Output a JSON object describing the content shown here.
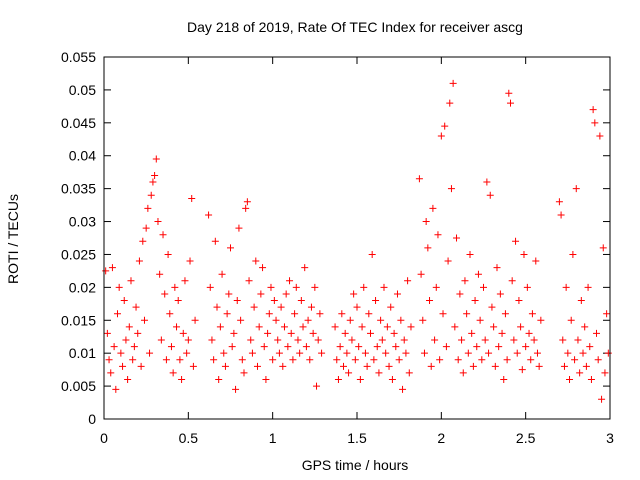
{
  "chart_data": {
    "type": "scatter",
    "title": "Day 218 of 2019, Rate Of TEC Index for receiver ascg",
    "xlabel": "GPS time / hours",
    "ylabel": "ROTI / TECUs",
    "xlim": [
      0,
      3
    ],
    "ylim": [
      0,
      0.055
    ],
    "x_ticks": [
      0,
      0.5,
      1,
      1.5,
      2,
      2.5,
      3
    ],
    "x_tick_labels": [
      "0",
      "0.5",
      "1",
      "1.5",
      "2",
      "2.5",
      "3"
    ],
    "y_ticks": [
      0,
      0.005,
      0.01,
      0.015,
      0.02,
      0.025,
      0.03,
      0.035,
      0.04,
      0.045,
      0.05,
      0.055
    ],
    "y_tick_labels": [
      "0",
      "0.005",
      "0.01",
      "0.015",
      "0.02",
      "0.025",
      "0.03",
      "0.035",
      "0.04",
      "0.045",
      "0.05",
      "0.055"
    ],
    "marker": "+",
    "color": "#ff0000",
    "series": [
      {
        "name": "ROTI",
        "points": [
          [
            0.01,
            0.0225
          ],
          [
            0.02,
            0.013
          ],
          [
            0.03,
            0.009
          ],
          [
            0.04,
            0.007
          ],
          [
            0.05,
            0.023
          ],
          [
            0.06,
            0.011
          ],
          [
            0.07,
            0.0045
          ],
          [
            0.08,
            0.016
          ],
          [
            0.09,
            0.02
          ],
          [
            0.1,
            0.01
          ],
          [
            0.11,
            0.008
          ],
          [
            0.12,
            0.018
          ],
          [
            0.13,
            0.012
          ],
          [
            0.14,
            0.006
          ],
          [
            0.15,
            0.014
          ],
          [
            0.16,
            0.021
          ],
          [
            0.17,
            0.009
          ],
          [
            0.18,
            0.011
          ],
          [
            0.19,
            0.017
          ],
          [
            0.2,
            0.013
          ],
          [
            0.21,
            0.024
          ],
          [
            0.22,
            0.008
          ],
          [
            0.23,
            0.027
          ],
          [
            0.24,
            0.015
          ],
          [
            0.25,
            0.029
          ],
          [
            0.26,
            0.032
          ],
          [
            0.27,
            0.01
          ],
          [
            0.28,
            0.034
          ],
          [
            0.29,
            0.036
          ],
          [
            0.3,
            0.037
          ],
          [
            0.31,
            0.0395
          ],
          [
            0.32,
            0.03
          ],
          [
            0.33,
            0.022
          ],
          [
            0.34,
            0.012
          ],
          [
            0.35,
            0.028
          ],
          [
            0.36,
            0.019
          ],
          [
            0.37,
            0.009
          ],
          [
            0.38,
            0.025
          ],
          [
            0.39,
            0.016
          ],
          [
            0.4,
            0.011
          ],
          [
            0.41,
            0.007
          ],
          [
            0.42,
            0.02
          ],
          [
            0.43,
            0.014
          ],
          [
            0.44,
            0.018
          ],
          [
            0.45,
            0.009
          ],
          [
            0.46,
            0.006
          ],
          [
            0.47,
            0.013
          ],
          [
            0.48,
            0.021
          ],
          [
            0.49,
            0.01
          ],
          [
            0.5,
            0.012
          ],
          [
            0.51,
            0.024
          ],
          [
            0.52,
            0.0335
          ],
          [
            0.53,
            0.008
          ],
          [
            0.54,
            0.015
          ],
          [
            0.62,
            0.031
          ],
          [
            0.63,
            0.02
          ],
          [
            0.64,
            0.012
          ],
          [
            0.65,
            0.009
          ],
          [
            0.66,
            0.027
          ],
          [
            0.67,
            0.017
          ],
          [
            0.68,
            0.006
          ],
          [
            0.69,
            0.014
          ],
          [
            0.7,
            0.022
          ],
          [
            0.71,
            0.01
          ],
          [
            0.72,
            0.008
          ],
          [
            0.73,
            0.016
          ],
          [
            0.74,
            0.019
          ],
          [
            0.75,
            0.026
          ],
          [
            0.76,
            0.011
          ],
          [
            0.77,
            0.013
          ],
          [
            0.78,
            0.0045
          ],
          [
            0.79,
            0.018
          ],
          [
            0.8,
            0.029
          ],
          [
            0.81,
            0.015
          ],
          [
            0.82,
            0.009
          ],
          [
            0.83,
            0.007
          ],
          [
            0.84,
            0.032
          ],
          [
            0.85,
            0.033
          ],
          [
            0.86,
            0.021
          ],
          [
            0.87,
            0.012
          ],
          [
            0.88,
            0.01
          ],
          [
            0.89,
            0.017
          ],
          [
            0.9,
            0.024
          ],
          [
            0.91,
            0.008
          ],
          [
            0.92,
            0.014
          ],
          [
            0.93,
            0.019
          ],
          [
            0.94,
            0.023
          ],
          [
            0.95,
            0.011
          ],
          [
            0.96,
            0.006
          ],
          [
            0.97,
            0.013
          ],
          [
            0.98,
            0.016
          ],
          [
            0.99,
            0.02
          ],
          [
            1.0,
            0.009
          ],
          [
            1.01,
            0.018
          ],
          [
            1.02,
            0.015
          ],
          [
            1.03,
            0.012
          ],
          [
            1.04,
            0.01
          ],
          [
            1.05,
            0.017
          ],
          [
            1.06,
            0.008
          ],
          [
            1.07,
            0.014
          ],
          [
            1.08,
            0.019
          ],
          [
            1.09,
            0.011
          ],
          [
            1.1,
            0.021
          ],
          [
            1.11,
            0.013
          ],
          [
            1.12,
            0.009
          ],
          [
            1.13,
            0.016
          ],
          [
            1.14,
            0.02
          ],
          [
            1.15,
            0.012
          ],
          [
            1.16,
            0.01
          ],
          [
            1.17,
            0.018
          ],
          [
            1.18,
            0.014
          ],
          [
            1.19,
            0.023
          ],
          [
            1.2,
            0.011
          ],
          [
            1.21,
            0.015
          ],
          [
            1.22,
            0.009
          ],
          [
            1.23,
            0.017
          ],
          [
            1.24,
            0.013
          ],
          [
            1.25,
            0.02
          ],
          [
            1.26,
            0.005
          ],
          [
            1.27,
            0.012
          ],
          [
            1.28,
            0.016
          ],
          [
            1.29,
            0.01
          ],
          [
            1.37,
            0.014
          ],
          [
            1.38,
            0.009
          ],
          [
            1.39,
            0.006
          ],
          [
            1.4,
            0.011
          ],
          [
            1.41,
            0.016
          ],
          [
            1.42,
            0.008
          ],
          [
            1.43,
            0.013
          ],
          [
            1.44,
            0.01
          ],
          [
            1.45,
            0.007
          ],
          [
            1.46,
            0.015
          ],
          [
            1.47,
            0.012
          ],
          [
            1.48,
            0.019
          ],
          [
            1.49,
            0.009
          ],
          [
            1.5,
            0.017
          ],
          [
            1.51,
            0.011
          ],
          [
            1.52,
            0.006
          ],
          [
            1.53,
            0.014
          ],
          [
            1.54,
            0.02
          ],
          [
            1.55,
            0.01
          ],
          [
            1.56,
            0.008
          ],
          [
            1.57,
            0.016
          ],
          [
            1.58,
            0.013
          ],
          [
            1.59,
            0.025
          ],
          [
            1.6,
            0.009
          ],
          [
            1.61,
            0.018
          ],
          [
            1.62,
            0.011
          ],
          [
            1.63,
            0.007
          ],
          [
            1.64,
            0.015
          ],
          [
            1.65,
            0.012
          ],
          [
            1.66,
            0.02
          ],
          [
            1.67,
            0.01
          ],
          [
            1.68,
            0.014
          ],
          [
            1.69,
            0.008
          ],
          [
            1.7,
            0.017
          ],
          [
            1.71,
            0.006
          ],
          [
            1.72,
            0.013
          ],
          [
            1.73,
            0.011
          ],
          [
            1.74,
            0.019
          ],
          [
            1.75,
            0.009
          ],
          [
            1.76,
            0.015
          ],
          [
            1.77,
            0.0045
          ],
          [
            1.78,
            0.012
          ],
          [
            1.79,
            0.01
          ],
          [
            1.8,
            0.021
          ],
          [
            1.81,
            0.007
          ],
          [
            1.82,
            0.014
          ],
          [
            1.87,
            0.0365
          ],
          [
            1.88,
            0.022
          ],
          [
            1.89,
            0.015
          ],
          [
            1.9,
            0.01
          ],
          [
            1.91,
            0.03
          ],
          [
            1.92,
            0.026
          ],
          [
            1.93,
            0.018
          ],
          [
            1.94,
            0.008
          ],
          [
            1.95,
            0.032
          ],
          [
            1.96,
            0.012
          ],
          [
            1.97,
            0.02
          ],
          [
            1.98,
            0.028
          ],
          [
            1.99,
            0.009
          ],
          [
            2.0,
            0.043
          ],
          [
            2.01,
            0.016
          ],
          [
            2.02,
            0.0445
          ],
          [
            2.03,
            0.011
          ],
          [
            2.04,
            0.024
          ],
          [
            2.05,
            0.048
          ],
          [
            2.06,
            0.035
          ],
          [
            2.07,
            0.051
          ],
          [
            2.08,
            0.014
          ],
          [
            2.09,
            0.0275
          ],
          [
            2.1,
            0.009
          ],
          [
            2.11,
            0.019
          ],
          [
            2.12,
            0.012
          ],
          [
            2.13,
            0.007
          ],
          [
            2.14,
            0.021
          ],
          [
            2.15,
            0.016
          ],
          [
            2.16,
            0.01
          ],
          [
            2.17,
            0.025
          ],
          [
            2.18,
            0.013
          ],
          [
            2.19,
            0.008
          ],
          [
            2.2,
            0.018
          ],
          [
            2.21,
            0.011
          ],
          [
            2.22,
            0.022
          ],
          [
            2.23,
            0.015
          ],
          [
            2.24,
            0.009
          ],
          [
            2.25,
            0.02
          ],
          [
            2.26,
            0.012
          ],
          [
            2.27,
            0.036
          ],
          [
            2.28,
            0.01
          ],
          [
            2.29,
            0.034
          ],
          [
            2.3,
            0.017
          ],
          [
            2.31,
            0.014
          ],
          [
            2.32,
            0.008
          ],
          [
            2.33,
            0.023
          ],
          [
            2.34,
            0.011
          ],
          [
            2.35,
            0.019
          ],
          [
            2.36,
            0.013
          ],
          [
            2.37,
            0.006
          ],
          [
            2.38,
            0.016
          ],
          [
            2.39,
            0.009
          ],
          [
            2.4,
            0.0495
          ],
          [
            2.41,
            0.048
          ],
          [
            2.42,
            0.021
          ],
          [
            2.43,
            0.012
          ],
          [
            2.44,
            0.027
          ],
          [
            2.45,
            0.01
          ],
          [
            2.46,
            0.018
          ],
          [
            2.47,
            0.014
          ],
          [
            2.48,
            0.0075
          ],
          [
            2.49,
            0.025
          ],
          [
            2.5,
            0.011
          ],
          [
            2.51,
            0.02
          ],
          [
            2.52,
            0.013
          ],
          [
            2.53,
            0.009
          ],
          [
            2.54,
            0.016
          ],
          [
            2.55,
            0.012
          ],
          [
            2.56,
            0.024
          ],
          [
            2.57,
            0.01
          ],
          [
            2.58,
            0.008
          ],
          [
            2.59,
            0.015
          ],
          [
            2.7,
            0.033
          ],
          [
            2.71,
            0.031
          ],
          [
            2.72,
            0.012
          ],
          [
            2.73,
            0.008
          ],
          [
            2.74,
            0.02
          ],
          [
            2.75,
            0.01
          ],
          [
            2.76,
            0.006
          ],
          [
            2.77,
            0.015
          ],
          [
            2.78,
            0.025
          ],
          [
            2.79,
            0.009
          ],
          [
            2.8,
            0.035
          ],
          [
            2.81,
            0.012
          ],
          [
            2.82,
            0.007
          ],
          [
            2.83,
            0.018
          ],
          [
            2.84,
            0.01
          ],
          [
            2.85,
            0.014
          ],
          [
            2.86,
            0.008
          ],
          [
            2.87,
            0.02
          ],
          [
            2.88,
            0.011
          ],
          [
            2.89,
            0.006
          ],
          [
            2.9,
            0.047
          ],
          [
            2.91,
            0.045
          ],
          [
            2.92,
            0.013
          ],
          [
            2.93,
            0.009
          ],
          [
            2.94,
            0.043
          ],
          [
            2.95,
            0.003
          ],
          [
            2.96,
            0.026
          ],
          [
            2.97,
            0.007
          ],
          [
            2.98,
            0.016
          ],
          [
            2.99,
            0.01
          ]
        ]
      }
    ]
  }
}
